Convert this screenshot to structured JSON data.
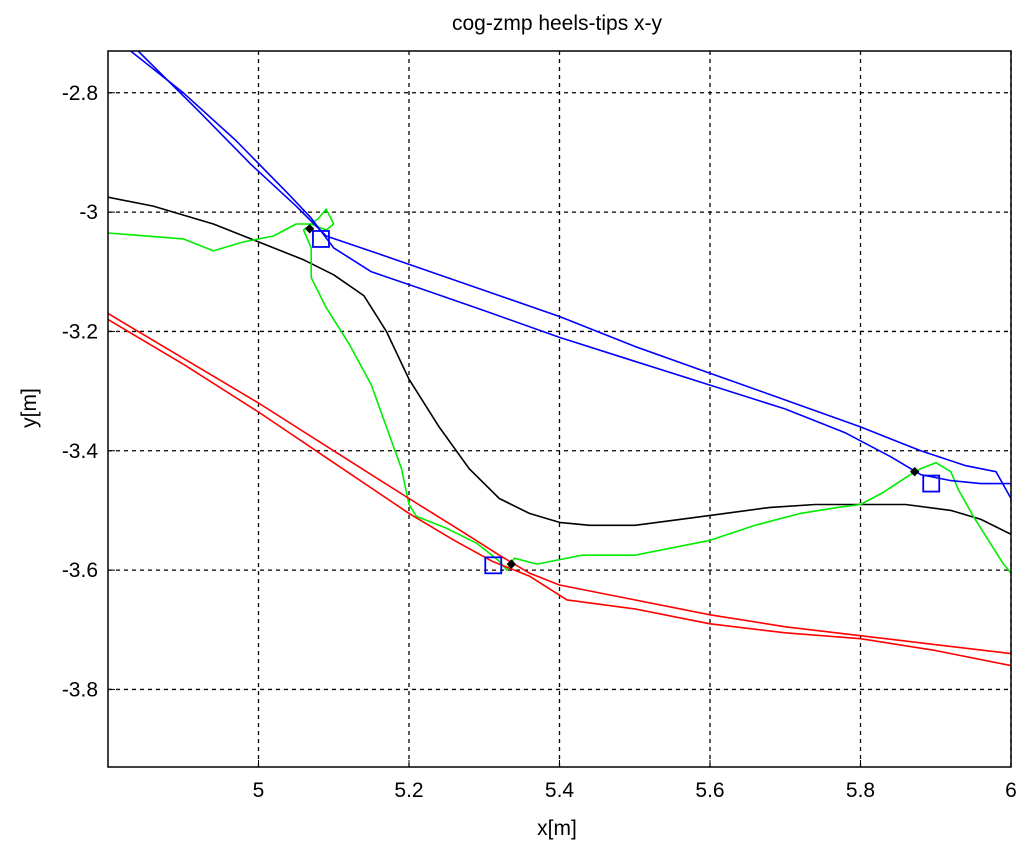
{
  "chart_data": {
    "type": "line",
    "title": "cog-zmp heels-tips x-y",
    "xlabel": "x[m]",
    "ylabel": "y[m]",
    "xlim": [
      4.8,
      6.0
    ],
    "ylim": [
      -3.93,
      -2.73
    ],
    "xticks": [
      5,
      5.2,
      5.4,
      5.6,
      5.8,
      6
    ],
    "xtick_labels": [
      "5",
      "5.2",
      "5.4",
      "5.6",
      "5.8",
      "6"
    ],
    "yticks": [
      -2.8,
      -3.0,
      -3.2,
      -3.4,
      -3.6,
      -3.8
    ],
    "ytick_labels": [
      "-2.8",
      "-3",
      "-3.2",
      "-3.4",
      "-3.6",
      "-3.8"
    ],
    "grid": true,
    "series": [
      {
        "color": "#000000",
        "points": [
          [
            4.8,
            -2.975
          ],
          [
            4.86,
            -2.99
          ],
          [
            4.94,
            -3.02
          ],
          [
            5.0,
            -3.05
          ],
          [
            5.06,
            -3.08
          ],
          [
            5.1,
            -3.105
          ],
          [
            5.14,
            -3.14
          ],
          [
            5.17,
            -3.2
          ],
          [
            5.2,
            -3.28
          ],
          [
            5.24,
            -3.36
          ],
          [
            5.28,
            -3.43
          ],
          [
            5.32,
            -3.48
          ],
          [
            5.36,
            -3.505
          ],
          [
            5.4,
            -3.52
          ],
          [
            5.44,
            -3.525
          ],
          [
            5.5,
            -3.525
          ],
          [
            5.56,
            -3.515
          ],
          [
            5.62,
            -3.505
          ],
          [
            5.68,
            -3.495
          ],
          [
            5.74,
            -3.49
          ],
          [
            5.8,
            -3.49
          ],
          [
            5.86,
            -3.49
          ],
          [
            5.92,
            -3.5
          ],
          [
            5.96,
            -3.515
          ],
          [
            6.0,
            -3.54
          ]
        ]
      },
      {
        "color": "#00ee00",
        "points": [
          [
            4.8,
            -3.035
          ],
          [
            4.9,
            -3.045
          ],
          [
            4.94,
            -3.065
          ],
          [
            4.98,
            -3.05
          ],
          [
            5.02,
            -3.04
          ],
          [
            5.05,
            -3.02
          ],
          [
            5.07,
            -3.02
          ],
          [
            5.09,
            -3.03
          ],
          [
            5.1,
            -3.02
          ],
          [
            5.09,
            -2.995
          ],
          [
            5.08,
            -3.01
          ],
          [
            5.06,
            -3.03
          ],
          [
            5.07,
            -3.06
          ],
          [
            5.07,
            -3.11
          ],
          [
            5.09,
            -3.16
          ],
          [
            5.12,
            -3.22
          ],
          [
            5.15,
            -3.29
          ],
          [
            5.17,
            -3.36
          ],
          [
            5.19,
            -3.43
          ],
          [
            5.2,
            -3.49
          ],
          [
            5.21,
            -3.51
          ],
          [
            5.25,
            -3.53
          ],
          [
            5.29,
            -3.555
          ],
          [
            5.32,
            -3.585
          ],
          [
            5.33,
            -3.6
          ],
          [
            5.34,
            -3.58
          ],
          [
            5.37,
            -3.59
          ],
          [
            5.39,
            -3.585
          ],
          [
            5.43,
            -3.575
          ],
          [
            5.5,
            -3.575
          ],
          [
            5.6,
            -3.55
          ],
          [
            5.66,
            -3.525
          ],
          [
            5.72,
            -3.505
          ],
          [
            5.77,
            -3.495
          ],
          [
            5.8,
            -3.49
          ],
          [
            5.83,
            -3.47
          ],
          [
            5.86,
            -3.445
          ],
          [
            5.88,
            -3.43
          ],
          [
            5.9,
            -3.42
          ],
          [
            5.92,
            -3.435
          ],
          [
            5.93,
            -3.465
          ],
          [
            5.95,
            -3.51
          ],
          [
            5.97,
            -3.55
          ],
          [
            5.99,
            -3.59
          ],
          [
            6.0,
            -3.605
          ]
        ]
      },
      {
        "color": "#0000ff",
        "points": [
          [
            4.83,
            -2.73
          ],
          [
            4.9,
            -2.8
          ],
          [
            4.97,
            -2.88
          ],
          [
            5.04,
            -2.97
          ],
          [
            5.07,
            -3.01
          ],
          [
            5.1,
            -3.06
          ],
          [
            5.15,
            -3.1
          ],
          [
            5.22,
            -3.13
          ],
          [
            5.3,
            -3.165
          ],
          [
            5.4,
            -3.21
          ],
          [
            5.5,
            -3.25
          ],
          [
            5.6,
            -3.29
          ],
          [
            5.7,
            -3.33
          ],
          [
            5.78,
            -3.37
          ],
          [
            5.84,
            -3.41
          ],
          [
            5.88,
            -3.44
          ],
          [
            5.92,
            -3.45
          ],
          [
            5.96,
            -3.455
          ],
          [
            6.0,
            -3.455
          ]
        ]
      },
      {
        "color": "#0000ff",
        "points": [
          [
            4.84,
            -2.73
          ],
          [
            4.92,
            -2.83
          ],
          [
            4.99,
            -2.92
          ],
          [
            5.05,
            -2.99
          ],
          [
            5.09,
            -3.04
          ],
          [
            5.16,
            -3.07
          ],
          [
            5.24,
            -3.105
          ],
          [
            5.32,
            -3.14
          ],
          [
            5.4,
            -3.175
          ],
          [
            5.5,
            -3.225
          ],
          [
            5.6,
            -3.27
          ],
          [
            5.7,
            -3.315
          ],
          [
            5.8,
            -3.36
          ],
          [
            5.88,
            -3.4
          ],
          [
            5.94,
            -3.425
          ],
          [
            5.98,
            -3.435
          ],
          [
            6.0,
            -3.48
          ]
        ]
      },
      {
        "color": "#ff0000",
        "points": [
          [
            4.8,
            -3.17
          ],
          [
            4.9,
            -3.245
          ],
          [
            5.0,
            -3.32
          ],
          [
            5.1,
            -3.4
          ],
          [
            5.2,
            -3.48
          ],
          [
            5.27,
            -3.535
          ],
          [
            5.32,
            -3.575
          ],
          [
            5.36,
            -3.605
          ],
          [
            5.4,
            -3.625
          ],
          [
            5.5,
            -3.65
          ],
          [
            5.6,
            -3.675
          ],
          [
            5.7,
            -3.695
          ],
          [
            5.8,
            -3.71
          ],
          [
            5.9,
            -3.725
          ],
          [
            6.0,
            -3.74
          ]
        ]
      },
      {
        "color": "#ff0000",
        "points": [
          [
            4.8,
            -3.18
          ],
          [
            4.9,
            -3.255
          ],
          [
            5.0,
            -3.335
          ],
          [
            5.1,
            -3.42
          ],
          [
            5.2,
            -3.505
          ],
          [
            5.26,
            -3.55
          ],
          [
            5.31,
            -3.585
          ],
          [
            5.36,
            -3.61
          ],
          [
            5.41,
            -3.65
          ],
          [
            5.5,
            -3.665
          ],
          [
            5.6,
            -3.69
          ],
          [
            5.7,
            -3.705
          ],
          [
            5.8,
            -3.715
          ],
          [
            5.9,
            -3.735
          ],
          [
            6.0,
            -3.76
          ]
        ]
      }
    ],
    "markers": [
      {
        "shape": "square",
        "color": "#0000ff",
        "x": 5.083,
        "y": -3.045
      },
      {
        "shape": "square",
        "color": "#0000ff",
        "x": 5.312,
        "y": -3.592
      },
      {
        "shape": "square",
        "color": "#0000ff",
        "x": 5.894,
        "y": -3.455
      },
      {
        "shape": "diamond",
        "color": "#000000",
        "x": 5.068,
        "y": -3.028
      },
      {
        "shape": "diamond",
        "color": "#000000",
        "x": 5.336,
        "y": -3.59
      },
      {
        "shape": "diamond",
        "color": "#000000",
        "x": 5.872,
        "y": -3.435
      }
    ]
  }
}
